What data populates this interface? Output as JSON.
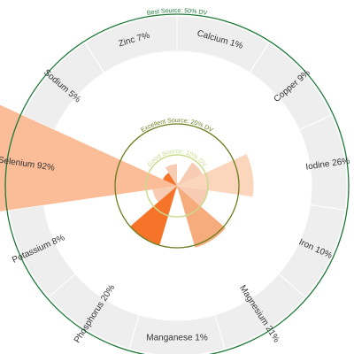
{
  "chart_data": {
    "type": "radial-bar",
    "unit": "% DV",
    "rings": [
      {
        "label": "Good Source: 10% DV",
        "value": 10,
        "color": "#c9dc8c"
      },
      {
        "label": "Excellent Source: 20% DV",
        "value": 20,
        "color": "#6b7f1e"
      },
      {
        "label": "Best Source: 50% DV",
        "value": 50,
        "color": "#1e7a3a"
      }
    ],
    "categories": [
      {
        "name": "Calcium",
        "value": 1,
        "label": "Calcium 1%",
        "color": "#f7c9ae"
      },
      {
        "name": "Copper",
        "value": 9,
        "label": "Copper 9%",
        "color": "#f7c9ae"
      },
      {
        "name": "Iodine",
        "value": 26,
        "label": "Iodine 26%",
        "color": "#fbd3b8"
      },
      {
        "name": "Iron",
        "value": 10,
        "label": "Iron 10%",
        "color": "#f7c9ae"
      },
      {
        "name": "Magnesium",
        "value": 21,
        "label": "Magnesium 21%",
        "color": "#f7a877"
      },
      {
        "name": "Manganese",
        "value": 1,
        "label": "Manganese 1%",
        "color": "#f7c9ae"
      },
      {
        "name": "Phosphorus",
        "value": 20,
        "label": "Phosphorus 20%",
        "color": "#f46d1f"
      },
      {
        "name": "Potassium",
        "value": 8,
        "label": "Potassium 8%",
        "color": "#f7c9ae"
      },
      {
        "name": "Selenium",
        "value": 92,
        "label": "Selenium 92%",
        "color": "#fbb892"
      },
      {
        "name": "Sodium",
        "value": 5,
        "label": "Sodium 5%",
        "color": "#f46d1f"
      },
      {
        "name": "Zinc",
        "value": 7,
        "label": "Zinc 7%",
        "color": "#f7c9ae"
      }
    ]
  }
}
